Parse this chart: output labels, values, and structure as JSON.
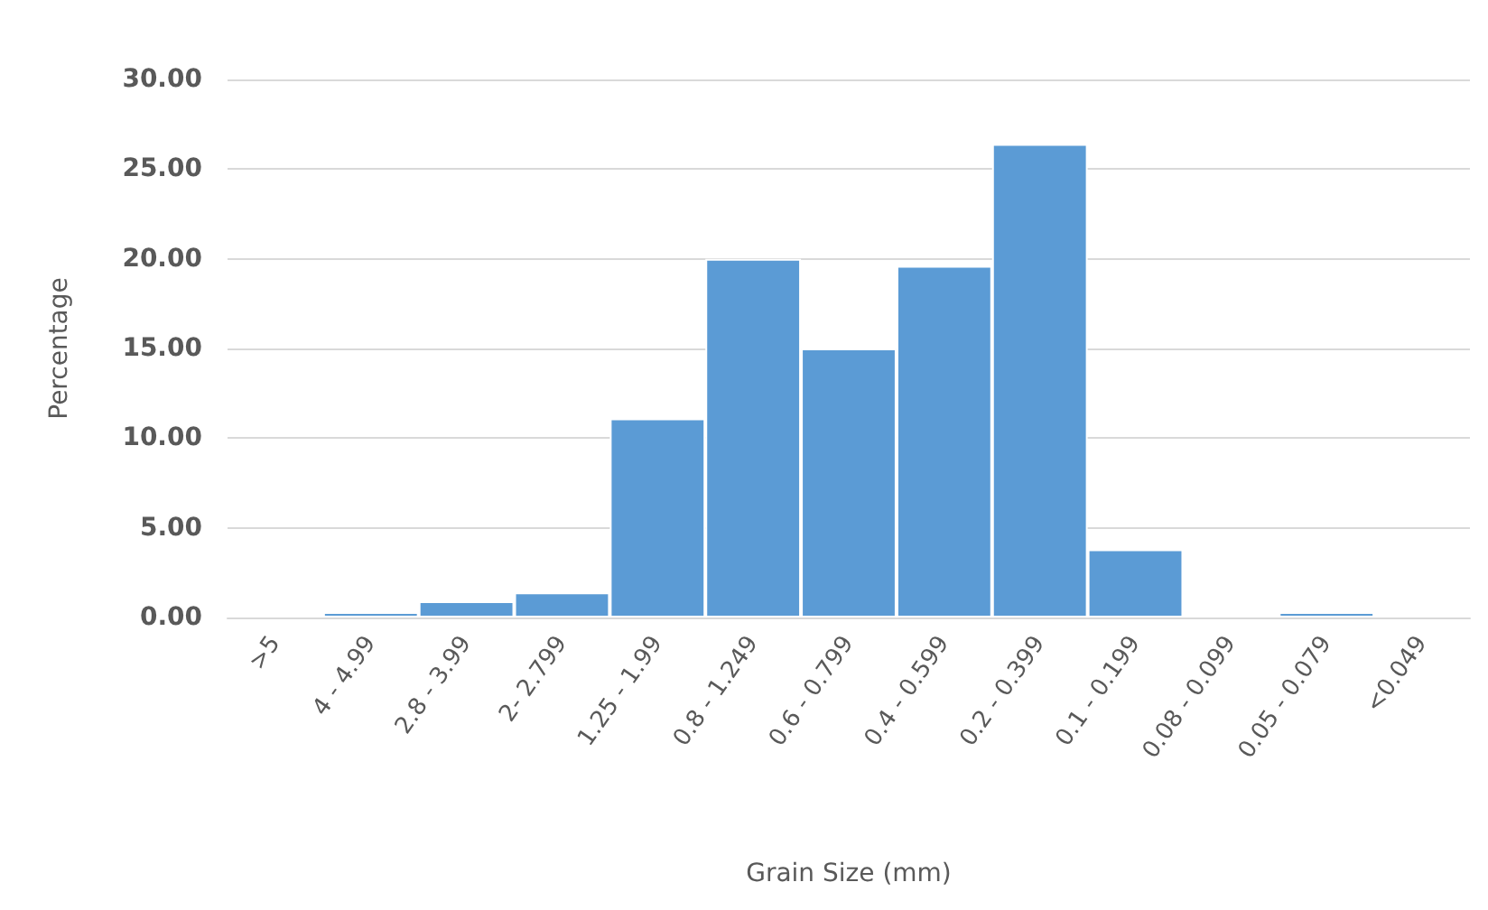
{
  "chart_data": {
    "type": "bar",
    "xlabel": "Grain Size (mm)",
    "ylabel": "Percentage",
    "categories": [
      ">5",
      "4 - 4.99",
      "2.8 - 3.99",
      "2- 2.799",
      "1.25 - 1.99",
      "0.8 - 1.249",
      "0.6 - 0.799",
      "0.4 - 0.599",
      "0.2 - 0.399",
      "0.1 - 0.199",
      "0.08 - 0.099",
      "0.05 - 0.079",
      "<0.049"
    ],
    "values": [
      0,
      0.3,
      0.9,
      1.4,
      11.1,
      20.0,
      15.0,
      19.6,
      26.4,
      3.8,
      0,
      0.3,
      0
    ],
    "color": "#5b9bd5",
    "ylim": [
      0,
      30
    ],
    "yticks": [
      {
        "value": 0,
        "label": "0.00"
      },
      {
        "value": 5,
        "label": "5.00"
      },
      {
        "value": 10,
        "label": "10.00"
      },
      {
        "value": 15,
        "label": "15.00"
      },
      {
        "value": 20,
        "label": "20.00"
      },
      {
        "value": 25,
        "label": "25.00"
      },
      {
        "value": 30,
        "label": "30.00"
      }
    ],
    "grid": "y"
  }
}
